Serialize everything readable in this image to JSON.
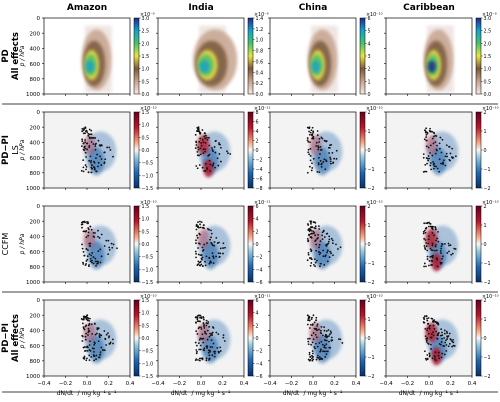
{
  "chart_data": {
    "type": "heatmap",
    "columns": [
      "Amazon",
      "India",
      "China",
      "Caribbean"
    ],
    "rows": [
      {
        "label_lines": [
          "PD",
          "All effects"
        ],
        "sublabel": ""
      },
      {
        "label_lines": [
          "PD−PI"
        ],
        "sublabel": "LS"
      },
      {
        "label_lines": [],
        "sublabel": "CCFM"
      },
      {
        "label_lines": [
          "PD−PI",
          "All effects"
        ],
        "sublabel": ""
      }
    ],
    "ylabel": "p / hPa",
    "yticks": [
      0,
      200,
      400,
      600,
      800,
      1000
    ],
    "xticks": [
      "−0.4",
      "−0.2",
      "0.0",
      "0.2",
      "0.4"
    ],
    "xlabel_tex": "dN/dt",
    "xlabel_units": "/ mg kg⁻¹ s⁻¹",
    "panels": [
      [
        {
          "exp": "×10⁻⁹",
          "cbar": "seq",
          "ticks": [
            "3.0",
            "2.5",
            "2.0",
            "1.5",
            "1.0",
            "0.5",
            "0.0"
          ]
        },
        {
          "exp": "×10⁻⁹",
          "cbar": "seq",
          "ticks": [
            "1.4",
            "1.2",
            "1.0",
            "0.8",
            "0.6",
            "0.4",
            "0.2",
            "0.0"
          ]
        },
        {
          "exp": "×10⁻¹⁰",
          "cbar": "seq",
          "ticks": [
            "6",
            "5",
            "4",
            "3",
            "2",
            "1",
            "0"
          ]
        },
        {
          "exp": "×10⁻⁹",
          "cbar": "seq",
          "ticks": [
            "3.0",
            "2.5",
            "2.0",
            "1.5",
            "1.0",
            "0.5",
            "0.0"
          ]
        }
      ],
      [
        {
          "exp": "×10⁻¹⁰",
          "cbar": "div",
          "ticks": [
            "1.5",
            "1.0",
            "0.5",
            "0.0",
            "−0.5",
            "−1.0",
            "−1.5"
          ]
        },
        {
          "exp": "×10⁻¹¹",
          "cbar": "div",
          "ticks": [
            "8",
            "6",
            "4",
            "2",
            "0",
            "−2",
            "−4",
            "−6",
            "−8"
          ]
        },
        {
          "exp": "×10⁻¹⁰",
          "cbar": "div",
          "ticks": [
            "2",
            "1",
            "0",
            "−1",
            "−2"
          ]
        },
        {
          "exp": "×10⁻¹⁰",
          "cbar": "div",
          "ticks": [
            "2",
            "1",
            "0",
            "−1",
            "−2"
          ]
        }
      ],
      [
        {
          "exp": "×10⁻¹⁰",
          "cbar": "div",
          "ticks": [
            "1.5",
            "1.0",
            "0.5",
            "0.0",
            "−0.5",
            "−1.0",
            "−1.5"
          ]
        },
        {
          "exp": "×10⁻¹¹",
          "cbar": "div",
          "ticks": [
            "6",
            "4",
            "2",
            "0",
            "−2",
            "−4",
            "−6"
          ]
        },
        {
          "exp": "×10⁻¹⁰",
          "cbar": "div",
          "ticks": [
            "2",
            "1",
            "0",
            "−1",
            "−2"
          ]
        },
        {
          "exp": "×10⁻¹⁰",
          "cbar": "div",
          "ticks": [
            "2",
            "1",
            "0",
            "−1",
            "−2"
          ]
        }
      ],
      [
        {
          "exp": "×10⁻¹⁰",
          "cbar": "div",
          "ticks": [
            "1.5",
            "1.0",
            "0.5",
            "0.0",
            "−0.5",
            "−1.0",
            "−1.5"
          ]
        },
        {
          "exp": "×10⁻¹¹",
          "cbar": "div",
          "ticks": [
            "6",
            "4",
            "2",
            "0",
            "−2",
            "−4",
            "−6"
          ]
        },
        {
          "exp": "×10⁻¹⁰",
          "cbar": "div",
          "ticks": [
            "2",
            "1",
            "0",
            "−1",
            "−2"
          ]
        },
        {
          "exp": "×10⁻¹⁰",
          "cbar": "div",
          "ticks": [
            "2",
            "1",
            "0",
            "−1",
            "−2"
          ]
        }
      ]
    ],
    "colors": {
      "seq": [
        "#f4e8e6",
        "#c7a48f",
        "#7a5a3c",
        "#e8e24a",
        "#49c26b",
        "#1aa0c8",
        "#1d2c8c"
      ],
      "pos": "#b2182b",
      "neg": "#2166ac",
      "panel_bg": "#f3f3f3",
      "dots": "#111111"
    }
  }
}
